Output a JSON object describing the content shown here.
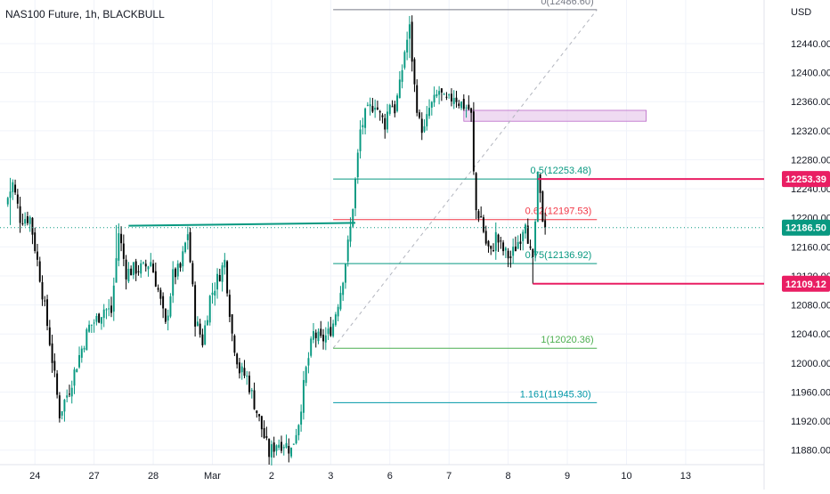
{
  "header": {
    "symbol_title": "NAS100 Future, 1h, BLACKBULL",
    "currency": "USD"
  },
  "colors": {
    "up": "#089981",
    "down": "#000000",
    "grid": "#f0f3fa",
    "fib_top": "#787b86",
    "fib_green": "#089981",
    "fib_pink": "#f23645",
    "fib_lightgreen": "#4caf50",
    "fib_blue": "#0097a7",
    "level_pink": "#e91e63",
    "last_price": "#089981",
    "zone_fill": "#e1bee7",
    "zone_border": "#ba68c8"
  },
  "chart_data": {
    "type": "candlestick",
    "title": "NAS100 Future, 1h, BLACKBULL",
    "xlabel": "",
    "ylabel": "",
    "y_unit": "USD",
    "ylim": [
      11860,
      12500
    ],
    "x_range": [
      0,
      310
    ],
    "grid": true,
    "x_ticks": [
      {
        "label": "24",
        "x": 12
      },
      {
        "label": "27",
        "x": 36
      },
      {
        "label": "28",
        "x": 60
      },
      {
        "label": "Mar",
        "x": 84
      },
      {
        "label": "2",
        "x": 108
      },
      {
        "label": "3",
        "x": 132
      },
      {
        "label": "6",
        "x": 156
      },
      {
        "label": "7",
        "x": 180
      },
      {
        "label": "8",
        "x": 204
      },
      {
        "label": "9",
        "x": 228
      },
      {
        "label": "10",
        "x": 252
      },
      {
        "label": "13",
        "x": 276
      }
    ],
    "y_ticks": [
      11880,
      11920,
      11960,
      12000,
      12040,
      12080,
      12120,
      12160,
      12200,
      12240,
      12280,
      12320,
      12360,
      12400,
      12440
    ],
    "anchors": [
      [
        0,
        12218
      ],
      [
        3,
        12247
      ],
      [
        6,
        12200
      ],
      [
        10,
        12200
      ],
      [
        14,
        12120
      ],
      [
        18,
        12030
      ],
      [
        22,
        11930
      ],
      [
        26,
        11965
      ],
      [
        30,
        12010
      ],
      [
        34,
        12050
      ],
      [
        37,
        12060
      ],
      [
        40,
        12075
      ],
      [
        43,
        12070
      ],
      [
        46,
        12180
      ],
      [
        49,
        12125
      ],
      [
        53,
        12130
      ],
      [
        56,
        12130
      ],
      [
        59,
        12140
      ],
      [
        62,
        12100
      ],
      [
        65,
        12050
      ],
      [
        68,
        12120
      ],
      [
        71,
        12130
      ],
      [
        74,
        12180
      ],
      [
        77,
        12060
      ],
      [
        80,
        12030
      ],
      [
        83,
        12090
      ],
      [
        86,
        12115
      ],
      [
        89,
        12140
      ],
      [
        92,
        12040
      ],
      [
        95,
        11990
      ],
      [
        98,
        11980
      ],
      [
        101,
        11945
      ],
      [
        104,
        11910
      ],
      [
        107,
        11875
      ],
      [
        110,
        11890
      ],
      [
        113,
        11890
      ],
      [
        116,
        11880
      ],
      [
        119,
        11920
      ],
      [
        122,
        11990
      ],
      [
        125,
        12040
      ],
      [
        128,
        12030
      ],
      [
        131,
        12040
      ],
      [
        133,
        12055
      ],
      [
        136,
        12100
      ],
      [
        138,
        12140
      ],
      [
        140,
        12185
      ],
      [
        142,
        12250
      ],
      [
        144,
        12320
      ],
      [
        146,
        12340
      ],
      [
        148,
        12350
      ],
      [
        150,
        12360
      ],
      [
        152,
        12340
      ],
      [
        154,
        12330
      ],
      [
        156,
        12360
      ],
      [
        158,
        12350
      ],
      [
        160,
        12380
      ],
      [
        162,
        12430
      ],
      [
        164,
        12460
      ],
      [
        166,
        12380
      ],
      [
        168,
        12330
      ],
      [
        170,
        12320
      ],
      [
        172,
        12350
      ],
      [
        174,
        12360
      ],
      [
        176,
        12375
      ],
      [
        178,
        12360
      ],
      [
        180,
        12360
      ],
      [
        182,
        12370
      ],
      [
        184,
        12360
      ],
      [
        186,
        12355
      ],
      [
        188,
        12350
      ],
      [
        189,
        12340
      ],
      [
        190,
        12260
      ],
      [
        191,
        12210
      ],
      [
        193,
        12200
      ],
      [
        195,
        12165
      ],
      [
        197,
        12150
      ],
      [
        199,
        12175
      ],
      [
        201,
        12160
      ],
      [
        203,
        12150
      ],
      [
        205,
        12145
      ],
      [
        207,
        12160
      ],
      [
        209,
        12175
      ],
      [
        211,
        12200
      ],
      [
        213,
        12150
      ],
      [
        214,
        12135
      ],
      [
        216,
        12253
      ],
      [
        218,
        12200
      ],
      [
        219,
        12186.5
      ]
    ],
    "wicks": [
      {
        "x": 0,
        "high": 12265,
        "low": 12195
      },
      {
        "x": 2,
        "high": 12255,
        "low": 12190
      },
      {
        "x": 22,
        "high": 11960,
        "low": 11918
      },
      {
        "x": 45,
        "high": 12190,
        "low": 12120
      },
      {
        "x": 92,
        "high": 12060,
        "low": 12030
      },
      {
        "x": 107,
        "high": 11892,
        "low": 11860
      },
      {
        "x": 164,
        "high": 12478,
        "low": 12420
      },
      {
        "x": 214,
        "high": 12145,
        "low": 12109.12
      },
      {
        "x": 216,
        "high": 12255,
        "low": 12200
      }
    ],
    "fib_levels": [
      {
        "ratio": "0",
        "value": 12486.6,
        "label": "0(12486.60)",
        "color_key": "fib_top"
      },
      {
        "ratio": "0.5",
        "value": 12253.48,
        "label": "0.5(12253.48)",
        "color_key": "fib_green"
      },
      {
        "ratio": "0.62",
        "value": 12197.53,
        "label": "0.62(12197.53)",
        "color_key": "fib_pink"
      },
      {
        "ratio": "0.75",
        "value": 12136.92,
        "label": "0.75(12136.92)",
        "color_key": "fib_green"
      },
      {
        "ratio": "1",
        "value": 12020.36,
        "label": "1(12020.36)",
        "color_key": "fib_lightgreen"
      },
      {
        "ratio": "1.161",
        "value": 11945.3,
        "label": "1.161(11945.30)",
        "color_key": "fib_blue"
      }
    ],
    "fib_range": {
      "x_start": 133,
      "x_end": 240
    },
    "fib_trend": {
      "x1": 133,
      "y1": 12020.36,
      "x2": 240,
      "y2": 12486.6
    },
    "price_levels": [
      {
        "value": 12253.39,
        "label": "12253.39",
        "color_key": "level_pink",
        "x_start": 216
      },
      {
        "value": 12109.12,
        "label": "12109.12",
        "color_key": "level_pink",
        "x_start": 214
      }
    ],
    "last_price": {
      "value": 12186.5,
      "label": "12186.50",
      "color_key": "last_price"
    },
    "trendline": {
      "x1": 50,
      "y1": 12189,
      "x2": 142,
      "y2": 12193
    },
    "zone": {
      "x1": 186,
      "x2": 260,
      "y1": 12333,
      "y2": 12348
    }
  }
}
